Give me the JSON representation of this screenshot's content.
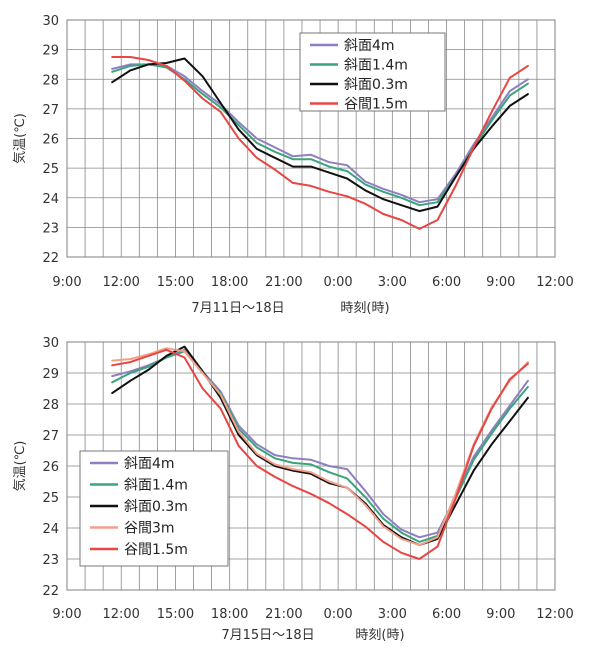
{
  "chart_data": [
    {
      "type": "line",
      "ylabel": "気温(℃)",
      "xlabel_date": "7月11日～18日",
      "xlabel_time": "時刻(時)",
      "ylim": [
        22,
        30
      ],
      "yticks": [
        "22",
        "23",
        "24",
        "25",
        "26",
        "27",
        "28",
        "29",
        "30"
      ],
      "xlim": [
        9,
        36
      ],
      "xticks": [
        "9:00",
        "12:00",
        "15:00",
        "18:00",
        "21:00",
        "0:00",
        "3:00",
        "6:00",
        "9:00",
        "12:00"
      ],
      "grid": true,
      "legend_position": "top-center",
      "series": [
        {
          "name": "斜面4m",
          "color": "#8f7fc0",
          "x": [
            11.5,
            12.5,
            13.5,
            14.5,
            15.5,
            16.5,
            17.5,
            18.5,
            19.5,
            20.5,
            21.5,
            22.5,
            23.5,
            24.5,
            25.5,
            26.5,
            27.5,
            28.5,
            29.5,
            30.5,
            31.5,
            32.5,
            33.5,
            34.5
          ],
          "y": [
            28.35,
            28.5,
            28.5,
            28.45,
            28.1,
            27.6,
            27.15,
            26.55,
            26.0,
            25.7,
            25.4,
            25.45,
            25.2,
            25.1,
            24.55,
            24.3,
            24.1,
            23.85,
            23.95,
            24.8,
            25.8,
            26.7,
            27.6,
            28.0
          ]
        },
        {
          "name": "斜面1.4m",
          "color": "#3aa47c",
          "x": [
            11.5,
            12.5,
            13.5,
            14.5,
            15.5,
            16.5,
            17.5,
            18.5,
            19.5,
            20.5,
            21.5,
            22.5,
            23.5,
            24.5,
            25.5,
            26.5,
            27.5,
            28.5,
            29.5,
            30.5,
            31.5,
            32.5,
            33.5,
            34.5
          ],
          "y": [
            28.25,
            28.45,
            28.5,
            28.4,
            28.0,
            27.5,
            27.05,
            26.45,
            25.85,
            25.55,
            25.3,
            25.3,
            25.05,
            24.9,
            24.45,
            24.2,
            24.0,
            23.75,
            23.85,
            24.7,
            25.7,
            26.6,
            27.45,
            27.85
          ]
        },
        {
          "name": "斜面0.3m",
          "color": "#111111",
          "x": [
            11.5,
            12.5,
            13.5,
            14.5,
            15.5,
            16.5,
            17.5,
            18.5,
            19.5,
            20.5,
            21.5,
            22.5,
            23.5,
            24.5,
            25.5,
            26.5,
            27.5,
            28.5,
            29.5,
            30.5,
            31.5,
            32.5,
            33.5,
            34.5
          ],
          "y": [
            27.9,
            28.3,
            28.5,
            28.55,
            28.7,
            28.1,
            27.2,
            26.3,
            25.65,
            25.35,
            25.05,
            25.05,
            24.85,
            24.65,
            24.25,
            23.95,
            23.75,
            23.55,
            23.7,
            24.7,
            25.65,
            26.4,
            27.1,
            27.5
          ]
        },
        {
          "name": "谷間1.5m",
          "color": "#e84545",
          "x": [
            11.5,
            12.5,
            13.5,
            14.5,
            15.5,
            16.5,
            17.5,
            18.5,
            19.5,
            20.5,
            21.5,
            22.5,
            23.5,
            24.5,
            25.5,
            26.5,
            27.5,
            28.5,
            29.5,
            30.5,
            31.5,
            32.5,
            33.5,
            34.5
          ],
          "y": [
            28.75,
            28.75,
            28.65,
            28.45,
            27.95,
            27.35,
            26.9,
            26.0,
            25.35,
            24.95,
            24.5,
            24.4,
            24.2,
            24.05,
            23.8,
            23.45,
            23.25,
            22.95,
            23.25,
            24.4,
            25.7,
            26.9,
            28.05,
            28.45
          ]
        }
      ]
    },
    {
      "type": "line",
      "ylabel": "気温(℃)",
      "xlabel_date": "7月15日～18日",
      "xlabel_time": "時刻(時)",
      "ylim": [
        22,
        30
      ],
      "yticks": [
        "22",
        "23",
        "24",
        "25",
        "26",
        "27",
        "28",
        "29",
        "30"
      ],
      "xlim": [
        9,
        36
      ],
      "xticks": [
        "9:00",
        "12:00",
        "15:00",
        "18:00",
        "21:00",
        "0:00",
        "3:00",
        "6:00",
        "9:00",
        "12:00"
      ],
      "grid": true,
      "legend_position": "left-middle",
      "series": [
        {
          "name": "斜面4m",
          "color": "#8f7fc0",
          "x": [
            11.5,
            12.5,
            13.5,
            14.5,
            15.5,
            16.5,
            17.5,
            18.5,
            19.5,
            20.5,
            21.5,
            22.5,
            23.5,
            24.5,
            25.5,
            26.5,
            27.5,
            28.5,
            29.5,
            30.5,
            31.5,
            32.5,
            33.5,
            34.5
          ],
          "y": [
            28.9,
            29.05,
            29.25,
            29.5,
            29.75,
            29.05,
            28.4,
            27.3,
            26.7,
            26.35,
            26.25,
            26.2,
            26.0,
            25.9,
            25.2,
            24.45,
            23.95,
            23.7,
            23.85,
            25.0,
            26.3,
            27.15,
            27.95,
            28.75
          ]
        },
        {
          "name": "斜面1.4m",
          "color": "#3aa47c",
          "x": [
            11.5,
            12.5,
            13.5,
            14.5,
            15.5,
            16.5,
            17.5,
            18.5,
            19.5,
            20.5,
            21.5,
            22.5,
            23.5,
            24.5,
            25.5,
            26.5,
            27.5,
            28.5,
            29.5,
            30.5,
            31.5,
            32.5,
            33.5,
            34.5
          ],
          "y": [
            28.7,
            29.0,
            29.2,
            29.5,
            29.7,
            29.0,
            28.35,
            27.2,
            26.6,
            26.25,
            26.1,
            26.05,
            25.8,
            25.6,
            25.0,
            24.3,
            23.85,
            23.55,
            23.75,
            24.95,
            26.2,
            27.05,
            27.85,
            28.55
          ]
        },
        {
          "name": "斜面0.3m",
          "color": "#111111",
          "x": [
            11.5,
            12.5,
            13.5,
            14.5,
            15.5,
            16.5,
            17.5,
            18.5,
            19.5,
            20.5,
            21.5,
            22.5,
            23.5,
            24.5,
            25.5,
            26.5,
            27.5,
            28.5,
            29.5,
            30.5,
            31.5,
            32.5,
            33.5,
            34.5
          ],
          "y": [
            28.35,
            28.75,
            29.1,
            29.55,
            29.85,
            29.05,
            28.2,
            27.0,
            26.35,
            26.0,
            25.85,
            25.75,
            25.45,
            25.3,
            24.8,
            24.1,
            23.7,
            23.45,
            23.65,
            24.75,
            25.85,
            26.7,
            27.45,
            28.2
          ]
        },
        {
          "name": "谷間3m",
          "color": "#f4a088",
          "x": [
            11.5,
            12.5,
            13.5,
            14.5,
            15.5,
            16.5,
            17.5,
            18.5,
            19.5,
            20.5,
            21.5,
            22.5,
            23.5,
            24.5,
            25.5,
            26.5,
            27.5,
            28.5,
            29.5,
            30.5,
            31.5,
            32.5,
            33.5,
            34.5
          ],
          "y": [
            29.4,
            29.45,
            29.6,
            29.8,
            29.7,
            29.0,
            28.3,
            27.1,
            26.4,
            26.05,
            25.9,
            25.8,
            25.5,
            25.3,
            24.75,
            24.05,
            23.65,
            23.45,
            23.7,
            25.1,
            26.7,
            27.9,
            28.75,
            29.35
          ]
        },
        {
          "name": "谷間1.5m",
          "color": "#e84545",
          "x": [
            11.5,
            12.5,
            13.5,
            14.5,
            15.5,
            16.5,
            17.5,
            18.5,
            19.5,
            20.5,
            21.5,
            22.5,
            23.5,
            24.5,
            25.5,
            26.5,
            27.5,
            28.5,
            29.5,
            30.5,
            31.5,
            32.5,
            33.5,
            34.5
          ],
          "y": [
            29.25,
            29.35,
            29.55,
            29.75,
            29.5,
            28.5,
            27.85,
            26.65,
            26.0,
            25.65,
            25.35,
            25.1,
            24.8,
            24.45,
            24.05,
            23.55,
            23.2,
            23.0,
            23.4,
            24.95,
            26.65,
            27.85,
            28.8,
            29.3
          ]
        }
      ]
    }
  ]
}
